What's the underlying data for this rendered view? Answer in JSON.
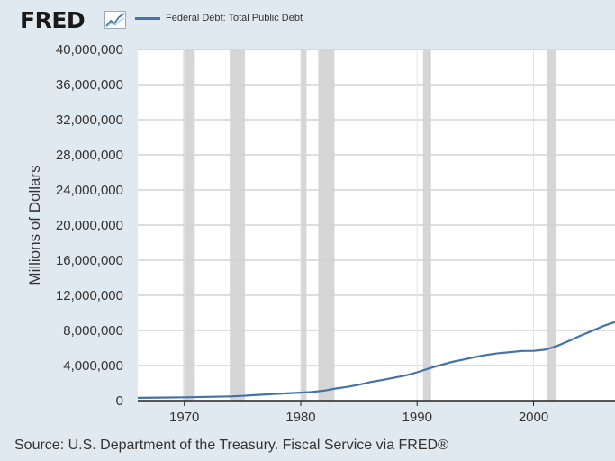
{
  "header": {
    "logo_text": "FRED",
    "logo_mark": "fred-chart-icon"
  },
  "footer": {
    "source": "Source: U.S. Department of the Treasury. Fiscal Service via FRED®"
  },
  "colors": {
    "background": "#e1e9f0",
    "plot_background": "#ffffff",
    "series_line": "#4572a7",
    "recession_shade": "#c8c8c8"
  },
  "chart_data": {
    "type": "line",
    "title": "",
    "xlabel": "",
    "ylabel": "Millions of Dollars",
    "xlim": [
      1966,
      2007
    ],
    "ylim": [
      0,
      40000000
    ],
    "grid": true,
    "legend_position": "top-left",
    "x_ticks": [
      1970,
      1980,
      1990,
      2000
    ],
    "x_tick_labels": [
      "1970",
      "1980",
      "1990",
      "2000"
    ],
    "y_ticks": [
      0,
      4000000,
      8000000,
      12000000,
      16000000,
      20000000,
      24000000,
      28000000,
      32000000,
      36000000,
      40000000
    ],
    "y_tick_labels": [
      "0",
      "4,000,000",
      "8,000,000",
      "12,000,000",
      "16,000,000",
      "20,000,000",
      "24,000,000",
      "28,000,000",
      "32,000,000",
      "36,000,000",
      "40,000,000"
    ],
    "recessions": [
      [
        1969.9,
        1970.9
      ],
      [
        1973.9,
        1975.2
      ],
      [
        1980.0,
        1980.5
      ],
      [
        1981.5,
        1982.9
      ],
      [
        1990.5,
        1991.2
      ],
      [
        2001.2,
        2001.9
      ]
    ],
    "series": [
      {
        "name": "Federal Debt: Total Public Debt",
        "x": [
          1966,
          1968,
          1970,
          1972,
          1974,
          1975,
          1976,
          1978,
          1980,
          1981,
          1982,
          1983,
          1984,
          1985,
          1986,
          1987,
          1988,
          1989,
          1990,
          1991,
          1992,
          1993,
          1994,
          1995,
          1996,
          1997,
          1998,
          1999,
          2000,
          2001,
          2002,
          2003,
          2004,
          2005,
          2006,
          2007
        ],
        "values": [
          320000,
          350000,
          380000,
          430000,
          480000,
          540000,
          630000,
          780000,
          910000,
          1000000,
          1140000,
          1380000,
          1570000,
          1820000,
          2120000,
          2350000,
          2600000,
          2860000,
          3230000,
          3660000,
          4060000,
          4410000,
          4690000,
          4970000,
          5220000,
          5410000,
          5530000,
          5660000,
          5670000,
          5810000,
          6230000,
          6780000,
          7380000,
          7930000,
          8500000,
          8950000
        ]
      }
    ]
  }
}
